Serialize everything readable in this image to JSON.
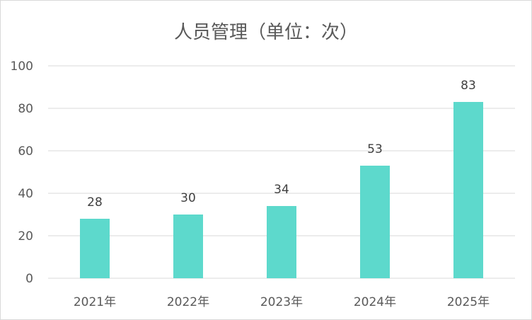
{
  "chart_data": {
    "type": "bar",
    "title": "人员管理（单位：次）",
    "categories": [
      "2021年",
      "2022年",
      "2023年",
      "2024年",
      "2025年"
    ],
    "values": [
      28,
      30,
      34,
      53,
      83
    ],
    "ylim": [
      0,
      100
    ],
    "yticks": [
      0,
      20,
      40,
      60,
      80,
      100
    ],
    "xlabel": "",
    "ylabel": "",
    "grid": true,
    "legend": "none",
    "bar_color": "#5dd9cc",
    "data_labels": true
  }
}
